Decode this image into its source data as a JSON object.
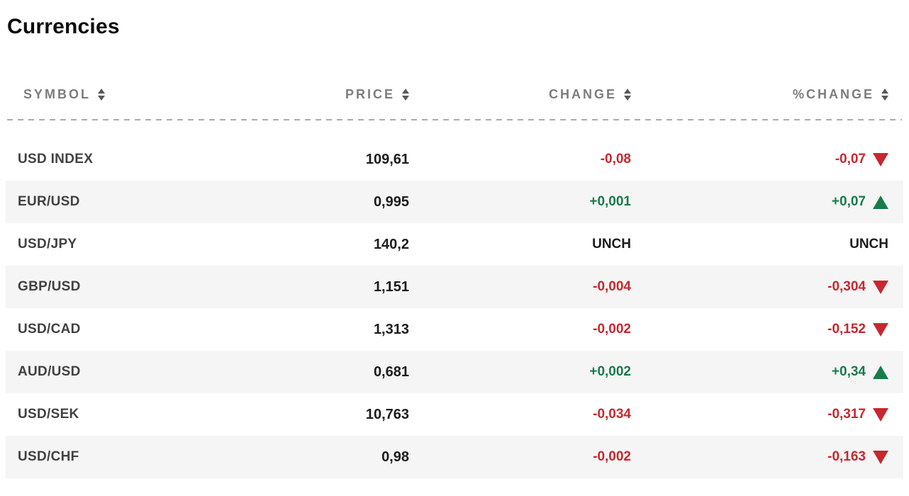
{
  "page": {
    "title": "Currencies"
  },
  "colors": {
    "up_green": "#177b4b",
    "down_red": "#c5282f",
    "unchanged_black": "#1c1c1c",
    "header_text_gray": "#7c7c7c",
    "alt_row_gray": "#f5f5f5"
  },
  "table": {
    "columns": [
      {
        "key": "symbol",
        "label": "SYMBOL",
        "sortable": true,
        "align": "left"
      },
      {
        "key": "price",
        "label": "PRICE",
        "sortable": true,
        "align": "right"
      },
      {
        "key": "change",
        "label": "CHANGE",
        "sortable": true,
        "align": "right"
      },
      {
        "key": "pct_change",
        "label": "%CHANGE",
        "sortable": true,
        "align": "right"
      }
    ],
    "rows": [
      {
        "symbol": "USD INDEX",
        "price": "109,61",
        "change": "-0,08",
        "change_dir": "down",
        "pct_change": "-0,07",
        "pct_dir": "down"
      },
      {
        "symbol": "EUR/USD",
        "price": "0,995",
        "change": "+0,001",
        "change_dir": "up",
        "pct_change": "+0,07",
        "pct_dir": "up"
      },
      {
        "symbol": "USD/JPY",
        "price": "140,2",
        "change": "UNCH",
        "change_dir": "unch",
        "pct_change": "UNCH",
        "pct_dir": "unch"
      },
      {
        "symbol": "GBP/USD",
        "price": "1,151",
        "change": "-0,004",
        "change_dir": "down",
        "pct_change": "-0,304",
        "pct_dir": "down"
      },
      {
        "symbol": "USD/CAD",
        "price": "1,313",
        "change": "-0,002",
        "change_dir": "down",
        "pct_change": "-0,152",
        "pct_dir": "down"
      },
      {
        "symbol": "AUD/USD",
        "price": "0,681",
        "change": "+0,002",
        "change_dir": "up",
        "pct_change": "+0,34",
        "pct_dir": "up"
      },
      {
        "symbol": "USD/SEK",
        "price": "10,763",
        "change": "-0,034",
        "change_dir": "down",
        "pct_change": "-0,317",
        "pct_dir": "down"
      },
      {
        "symbol": "USD/CHF",
        "price": "0,98",
        "change": "-0,002",
        "change_dir": "down",
        "pct_change": "-0,163",
        "pct_dir": "down"
      }
    ]
  }
}
